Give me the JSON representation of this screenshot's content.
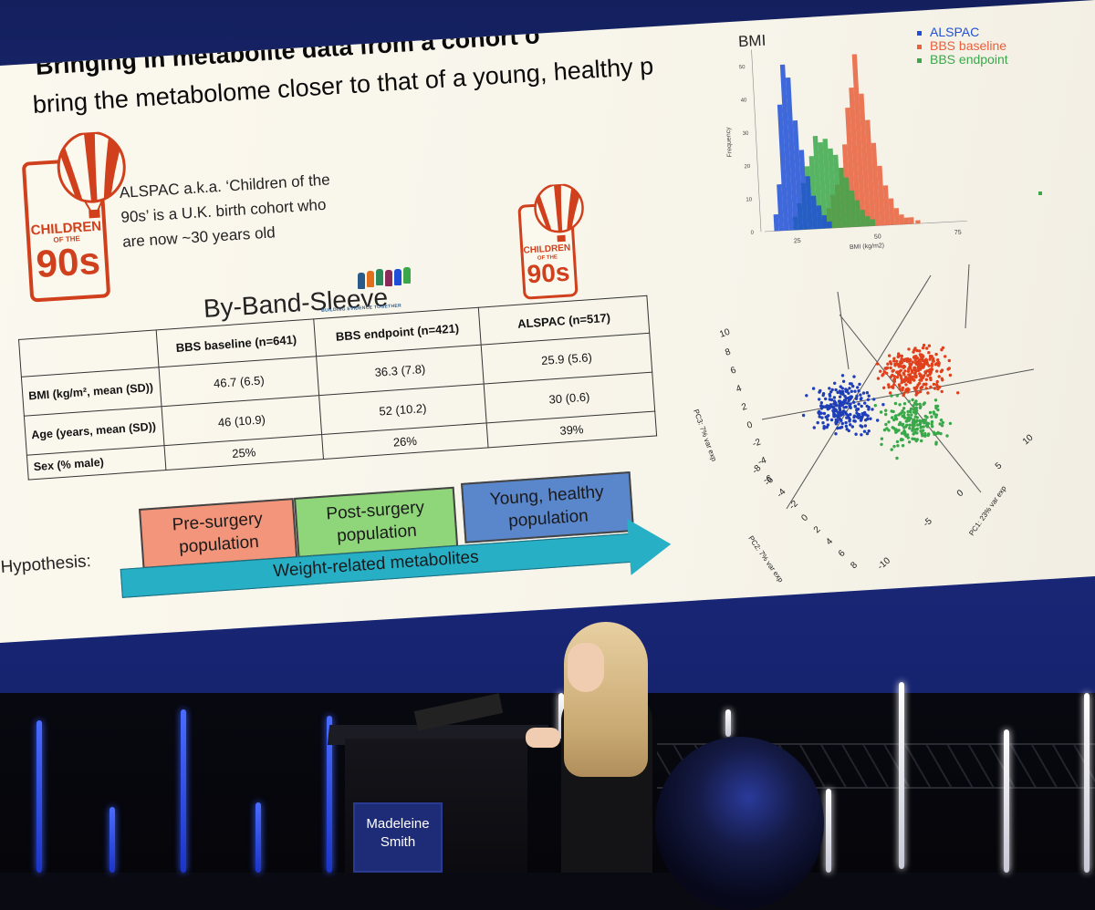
{
  "slide": {
    "title": "Bringing in metabolite data from a cohort o",
    "subtitle": "bring the metabolome closer to that of a young, healthy p",
    "logo_text": [
      "CHILDREN",
      "OF THE",
      "90s"
    ],
    "description": "ALSPAC a.k.a. ‘Children of the 90s’ is a U.K. birth cohort who are now ~30 years old",
    "bbs_title": "By-Band-Sleeve",
    "bbs_tagline": "BUILDING EVIDENCE TOGETHER",
    "table": {
      "headers": [
        "",
        "BBS baseline (n=641)",
        "BBS endpoint (n=421)",
        "ALSPAC (n=517)"
      ],
      "rows": [
        {
          "label": "BMI (kg/m², mean (SD))",
          "values": [
            "46.7 (6.5)",
            "36.3 (7.8)",
            "25.9 (5.6)"
          ]
        },
        {
          "label": "Age (years, mean (SD))",
          "values": [
            "46 (10.9)",
            "52 (10.2)",
            "30 (0.6)"
          ]
        },
        {
          "label": "Sex (% male)",
          "values": [
            "25%",
            "26%",
            "39%"
          ]
        }
      ]
    },
    "hypothesis_label": "Hypothesis:",
    "boxes": [
      {
        "label": "Pre-surgery population",
        "color": "#f2957a"
      },
      {
        "label": "Post-surgery population",
        "color": "#8fd67a"
      },
      {
        "label": "Young, healthy population",
        "color": "#5a86cc"
      }
    ],
    "arrow_label": "Weight-related metabolites"
  },
  "chart_data": [
    {
      "type": "bar",
      "title": "BMI",
      "xlabel": "BMI (kg/m2)",
      "ylabel": "Frequency",
      "x_ticks": [
        "25",
        "50",
        "75"
      ],
      "y_ticks": [
        "0",
        "10",
        "20",
        "30",
        "40",
        "50"
      ],
      "ylim": [
        0,
        55
      ],
      "xlim": [
        15,
        78
      ],
      "bin_width": 1.5,
      "legend_position": "top-right",
      "series": [
        {
          "name": "ALSPAC",
          "color": "#1f4fd8",
          "bins": [
            [
              18,
              5
            ],
            [
              19.5,
              14
            ],
            [
              21,
              38
            ],
            [
              22.5,
              50
            ],
            [
              24,
              46
            ],
            [
              25.5,
              33
            ],
            [
              27,
              24
            ],
            [
              28.5,
              16
            ],
            [
              30,
              10
            ],
            [
              31.5,
              7
            ],
            [
              33,
              4
            ],
            [
              34.5,
              2
            ]
          ]
        },
        {
          "name": "BBS baseline",
          "color": "#e8603c",
          "bins": [
            [
              33,
              3
            ],
            [
              34.5,
              6
            ],
            [
              36,
              10
            ],
            [
              37.5,
              13
            ],
            [
              39,
              18
            ],
            [
              40.5,
              25
            ],
            [
              42,
              36
            ],
            [
              43.5,
              42
            ],
            [
              45,
              52
            ],
            [
              46.5,
              40
            ],
            [
              48,
              32
            ],
            [
              49.5,
              25
            ],
            [
              51,
              18
            ],
            [
              52.5,
              12
            ],
            [
              54,
              8
            ],
            [
              55.5,
              5
            ],
            [
              57,
              3
            ],
            [
              58.5,
              2
            ],
            [
              60,
              2
            ],
            [
              62,
              1
            ]
          ]
        },
        {
          "name": "BBS endpoint",
          "color": "#3aa84a",
          "bins": [
            [
              24,
              4
            ],
            [
              25.5,
              8
            ],
            [
              27,
              14
            ],
            [
              28.5,
              19
            ],
            [
              30,
              22
            ],
            [
              31.5,
              28
            ],
            [
              33,
              26
            ],
            [
              34.5,
              27
            ],
            [
              36,
              24
            ],
            [
              37.5,
              22
            ],
            [
              39,
              18
            ],
            [
              40.5,
              15
            ],
            [
              42,
              11
            ],
            [
              43.5,
              8
            ],
            [
              45,
              5
            ],
            [
              46.5,
              3
            ],
            [
              48,
              2
            ]
          ]
        }
      ]
    },
    {
      "type": "scatter",
      "axes": [
        {
          "label": "PC1: 23% var exp",
          "ticks": [
            "-10",
            "-5",
            "0",
            "5",
            "10"
          ]
        },
        {
          "label": "PC2: 7% var exp",
          "ticks": [
            "-8",
            "-6",
            "-4",
            "-2",
            "0",
            "2",
            "4",
            "6",
            "8"
          ]
        },
        {
          "label": "PC3: 7% var exp",
          "ticks": [
            "10",
            "8",
            "6",
            "4",
            "2",
            "0",
            "-2",
            "-4",
            "-6"
          ]
        }
      ],
      "series": [
        {
          "name": "ALSPAC",
          "color": "#1f3fb8",
          "n": 517,
          "center_pc1": -4,
          "center_pc2": 0
        },
        {
          "name": "BBS endpoint",
          "color": "#3aa84a",
          "n": 421,
          "center_pc1": 1,
          "center_pc2": -1
        },
        {
          "name": "BBS baseline",
          "color": "#e0401c",
          "n": 641,
          "center_pc1": 4,
          "center_pc2": 2
        }
      ]
    }
  ],
  "speaker": {
    "name_line1": "Madeleine",
    "name_line2": "Smith"
  }
}
